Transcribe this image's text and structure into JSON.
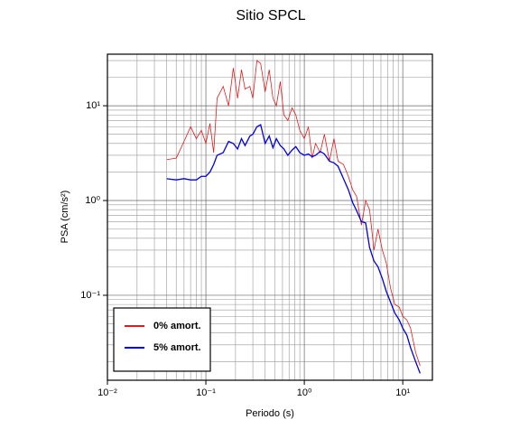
{
  "chart_data": {
    "type": "line",
    "title": "Sitio SPCL",
    "x_label": "Periodo (s)",
    "y_label": "PSA (cm/s²)",
    "xlog": true,
    "ylog": true,
    "grid": true,
    "legend": "lower left",
    "xlim": [
      0.01,
      20
    ],
    "ylim": [
      0.0127,
      35
    ],
    "xticks": [
      {
        "value": 0.01,
        "label": "10⁻²"
      },
      {
        "value": 0.1,
        "label": "10⁻¹"
      },
      {
        "value": 1,
        "label": "10⁰"
      },
      {
        "value": 10,
        "label": "10¹"
      }
    ],
    "yticks": [
      {
        "value": 0.1,
        "label": "10⁻¹"
      },
      {
        "value": 1,
        "label": "10⁰"
      },
      {
        "value": 10,
        "label": "10¹"
      }
    ],
    "x": [
      0.04,
      0.05,
      0.06,
      0.07,
      0.08,
      0.09,
      0.1,
      0.11,
      0.12,
      0.13,
      0.15,
      0.17,
      0.19,
      0.21,
      0.23,
      0.25,
      0.28,
      0.3,
      0.33,
      0.36,
      0.4,
      0.44,
      0.48,
      0.52,
      0.57,
      0.62,
      0.68,
      0.75,
      0.82,
      0.9,
      1.0,
      1.1,
      1.2,
      1.3,
      1.45,
      1.6,
      1.8,
      2.0,
      2.2,
      2.5,
      2.8,
      3.1,
      3.4,
      3.8,
      4.2,
      4.6,
      5.1,
      5.6,
      6.2,
      6.8,
      7.5,
      8.3,
      9.2,
      10,
      11,
      12,
      13.5,
      15
    ],
    "series": [
      {
        "name": "0% amort.",
        "color": "#e31a1c",
        "values": [
          2.7,
          2.8,
          4.2,
          6.0,
          4.5,
          5.5,
          4.0,
          6.5,
          3.2,
          12.0,
          16.0,
          10.0,
          25.0,
          12.0,
          24.0,
          15.0,
          16.0,
          12.0,
          30.0,
          28.0,
          14.0,
          24.0,
          12.0,
          10.0,
          18.0,
          8.0,
          7.0,
          9.5,
          8.0,
          5.5,
          4.5,
          6.0,
          2.8,
          4.0,
          3.2,
          5.0,
          2.6,
          4.5,
          2.6,
          2.4,
          1.8,
          1.3,
          1.1,
          0.55,
          1.0,
          0.8,
          0.3,
          0.5,
          0.3,
          0.22,
          0.12,
          0.08,
          0.075,
          0.06,
          0.055,
          0.045,
          0.025,
          0.018
        ]
      },
      {
        "name": "5% amort.",
        "color": "#0000e0",
        "values": [
          1.7,
          1.65,
          1.7,
          1.65,
          1.65,
          1.8,
          1.8,
          2.0,
          2.4,
          3.0,
          3.2,
          4.2,
          4.0,
          3.5,
          4.5,
          3.8,
          4.8,
          5.0,
          6.0,
          6.3,
          4.0,
          4.8,
          3.6,
          4.5,
          3.8,
          3.5,
          3.0,
          3.4,
          3.7,
          3.2,
          3.0,
          3.1,
          2.9,
          3.0,
          3.3,
          3.1,
          2.6,
          2.5,
          2.3,
          1.7,
          1.3,
          0.95,
          0.78,
          0.6,
          0.58,
          0.32,
          0.23,
          0.2,
          0.15,
          0.11,
          0.085,
          0.065,
          0.055,
          0.045,
          0.038,
          0.028,
          0.02,
          0.015
        ]
      }
    ]
  }
}
